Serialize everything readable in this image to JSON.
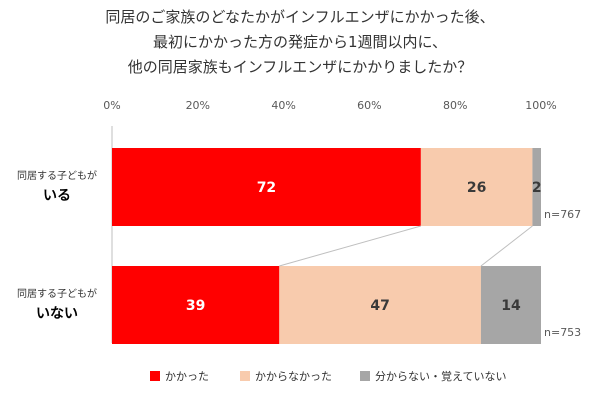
{
  "chart_data": {
    "type": "bar",
    "orientation": "horizontal",
    "stacked": true,
    "title_lines": [
      "同居のご家族のどなたかがインフルエンザにかかった後、",
      "最初にかかった方の発症から1週間以内に、",
      "他の同居家族もインフルエンザにかかりましたか？"
    ],
    "x_ticks": [
      "0%",
      "20%",
      "40%",
      "60%",
      "80%",
      "100%"
    ],
    "xlim": [
      0,
      100
    ],
    "grid": false,
    "legend_position": "bottom",
    "categories": [
      {
        "line1": "同居する子どもが",
        "line2": "いる",
        "n": "n=767"
      },
      {
        "line1": "同居する子どもが",
        "line2": "いない",
        "n": "n=753"
      }
    ],
    "series": [
      {
        "name": "かかった",
        "values": [
          72,
          39
        ],
        "color": "#ff0000",
        "label_color": "#ffffff"
      },
      {
        "name": "かからなかった",
        "values": [
          26,
          47
        ],
        "color": "#f8cbad",
        "label_color": "#3a3a3a"
      },
      {
        "name": "分からない・覚えていない",
        "values": [
          2,
          14
        ],
        "color": "#a6a6a6",
        "label_color": "#3a3a3a"
      }
    ]
  }
}
